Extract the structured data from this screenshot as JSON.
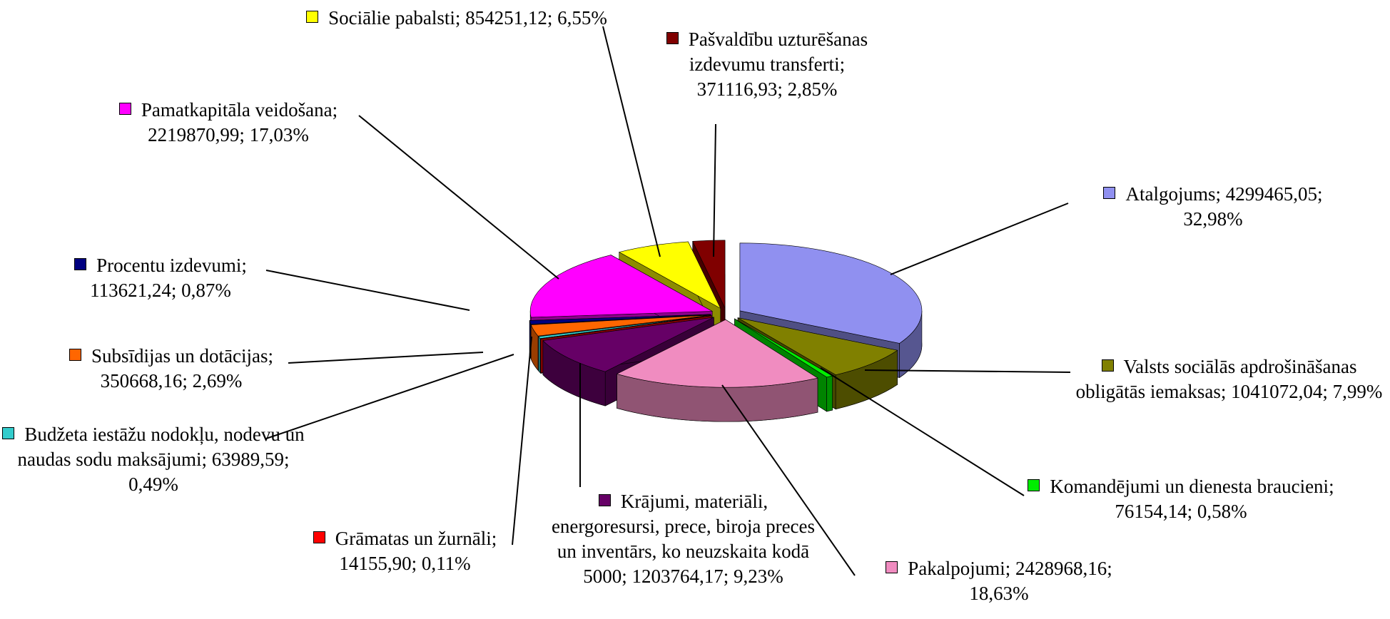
{
  "chart_data": {
    "type": "pie3d",
    "categories": [
      "Atalgojums",
      "Valsts sociālās apdrošināšanas obligātās iemaksas",
      "Komandējumi un dienesta braucieni",
      "Pakalpojumi",
      "Krājumi, materiāli, energoresursi, prece, biroja preces un inventārs, ko neuzskaita kodā 5000",
      "Grāmatas un žurnāli",
      "Budžeta iestāžu nodokļu, nodevu un naudas sodu maksājumi",
      "Subsīdijas un dotācijas",
      "Procentu izdevumi",
      "Pamatkapitāla veidošana",
      "Sociālie pabalsti",
      "Pašvaldību uzturēšanas izdevumu transferti"
    ],
    "values": [
      4299465.05,
      1041072.04,
      76154.14,
      2428968.16,
      1203764.17,
      14155.9,
      63989.59,
      350668.16,
      113621.24,
      2219870.99,
      854251.12,
      371116.93
    ],
    "value_labels": [
      "4299465,05",
      "1041072,04",
      "76154,14",
      "2428968,16",
      "1203764,17",
      "14155,90",
      "63989,59",
      "350668,16",
      "113621,24",
      "2219870,99",
      "854251,12",
      "371116,93"
    ],
    "percents": [
      32.98,
      7.99,
      0.58,
      18.63,
      9.23,
      0.11,
      0.49,
      2.69,
      0.87,
      17.03,
      6.55,
      2.85
    ],
    "percent_labels": [
      "32,98%",
      "7,99%",
      "0,58%",
      "18,63%",
      "9,23%",
      "0,11%",
      "0,49%",
      "2,69%",
      "0,87%",
      "17,03%",
      "6,55%",
      "2,85%"
    ],
    "label_separator": ";",
    "colors": [
      "#9090f0",
      "#808000",
      "#00ee00",
      "#f08cc0",
      "#660066",
      "#ff0000",
      "#33cccc",
      "#ff6600",
      "#000080",
      "#ff00ff",
      "#ffff00",
      "#800000"
    ]
  }
}
